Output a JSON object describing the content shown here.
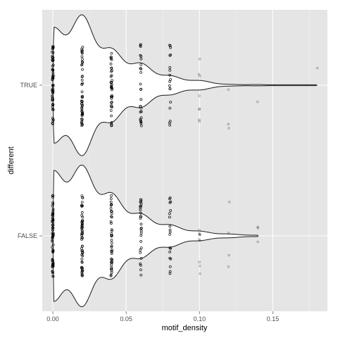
{
  "chart_data": {
    "type": "violin",
    "orientation": "horizontal",
    "xlabel": "motif_density",
    "ylabel": "different",
    "xlim": [
      -0.0072,
      0.1872
    ],
    "xticks": [
      {
        "value": 0.0,
        "label": "0.00"
      },
      {
        "value": 0.05,
        "label": "0.05"
      },
      {
        "value": 0.1,
        "label": "0.10"
      },
      {
        "value": 0.15,
        "label": "0.15"
      }
    ],
    "xminor": [
      0.025,
      0.075,
      0.125,
      0.175
    ],
    "categories": [
      "FALSE",
      "TRUE"
    ],
    "grid": true,
    "colors": {
      "panel": "#e5e5e5",
      "grid_major": "#ffffff",
      "grid_minor": "#f2f2f2",
      "violin_fill": "#ffffff",
      "violin_line": "#1a1a1a",
      "points": "#000000"
    },
    "series": [
      {
        "category": "TRUE",
        "violin": {
          "x_max": 0.18,
          "peaks": [
            {
              "x": 0.0,
              "half_width": 0.37
            },
            {
              "x": 0.02,
              "half_width": 0.45
            },
            {
              "x": 0.04,
              "half_width": 0.23
            },
            {
              "x": 0.06,
              "half_width": 0.14
            },
            {
              "x": 0.08,
              "half_width": 0.06
            },
            {
              "x": 0.1,
              "half_width": 0.03
            },
            {
              "x": 0.12,
              "half_width": 0.005
            },
            {
              "x": 0.14,
              "half_width": 0.004
            }
          ]
        },
        "points": [
          {
            "x": 0.0,
            "n": 60,
            "spread": 0.27
          },
          {
            "x": 0.02,
            "n": 50,
            "spread": 0.27
          },
          {
            "x": 0.04,
            "n": 40,
            "spread": 0.27
          },
          {
            "x": 0.06,
            "n": 26,
            "spread": 0.27
          },
          {
            "x": 0.08,
            "n": 18,
            "spread": 0.27
          },
          {
            "x": 0.1,
            "n": 8,
            "spread": 0.27
          },
          {
            "x": 0.12,
            "n": 3,
            "spread": 0.3
          },
          {
            "x": 0.14,
            "n": 1,
            "spread": 0.15
          },
          {
            "x": 0.18,
            "n": 1,
            "spread": 0.12
          }
        ]
      },
      {
        "category": "FALSE",
        "violin": {
          "x_max": 0.14,
          "peaks": [
            {
              "x": 0.0,
              "half_width": 0.42
            },
            {
              "x": 0.02,
              "half_width": 0.45
            },
            {
              "x": 0.04,
              "half_width": 0.27
            },
            {
              "x": 0.06,
              "half_width": 0.14
            },
            {
              "x": 0.08,
              "half_width": 0.07
            },
            {
              "x": 0.1,
              "half_width": 0.03
            },
            {
              "x": 0.12,
              "half_width": 0.012
            },
            {
              "x": 0.14,
              "half_width": 0.004
            }
          ]
        },
        "points": [
          {
            "x": 0.0,
            "n": 65,
            "spread": 0.27
          },
          {
            "x": 0.02,
            "n": 55,
            "spread": 0.27
          },
          {
            "x": 0.04,
            "n": 42,
            "spread": 0.27
          },
          {
            "x": 0.06,
            "n": 28,
            "spread": 0.27
          },
          {
            "x": 0.08,
            "n": 20,
            "spread": 0.27
          },
          {
            "x": 0.1,
            "n": 10,
            "spread": 0.27
          },
          {
            "x": 0.12,
            "n": 4,
            "spread": 0.3
          },
          {
            "x": 0.14,
            "n": 3,
            "spread": 0.06
          }
        ]
      }
    ]
  }
}
